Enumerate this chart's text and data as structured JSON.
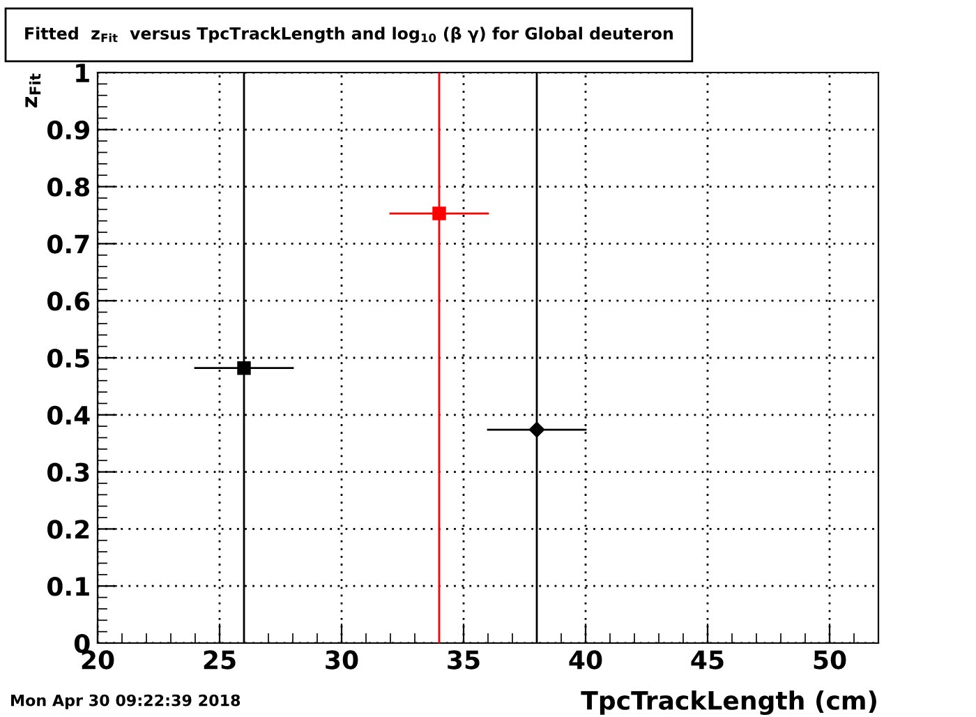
{
  "chart_data": {
    "type": "scatter",
    "title": "Fitted  z$_{Fit}$  versus TpcTrackLength and log$_{10}$ (β γ) for Global deuteron",
    "xlabel": "TpcTrackLength (cm)",
    "ylabel": "z$_{Fit}$",
    "series": [
      {
        "color": "#000000",
        "marker": "square",
        "x": [
          26
        ],
        "values": [
          0.482
        ],
        "xerrors": [
          2
        ],
        "errors": [
          [
            0,
            1
          ]
        ]
      },
      {
        "color": "#ff0000",
        "marker": "square",
        "x": [
          34
        ],
        "values": [
          0.753
        ],
        "xerrors": [
          2
        ],
        "errors": [
          [
            0,
            1
          ]
        ]
      },
      {
        "color": "#000000",
        "marker": "diamond",
        "x": [
          38
        ],
        "values": [
          0.374
        ],
        "xerrors": [
          2
        ],
        "errors": [
          [
            0,
            1
          ]
        ]
      }
    ],
    "xlim": [
      20,
      52
    ],
    "xticks": [
      20,
      25,
      30,
      35,
      40,
      45,
      50
    ],
    "ylim": [
      0,
      1
    ],
    "yticks": [
      0,
      0.1,
      0.2,
      0.3,
      0.4,
      0.5,
      0.6,
      0.7,
      0.8,
      0.9,
      1
    ],
    "grid": true,
    "legend": false,
    "annotations": [
      "Mon Apr 30 09:22:39 2018"
    ]
  }
}
